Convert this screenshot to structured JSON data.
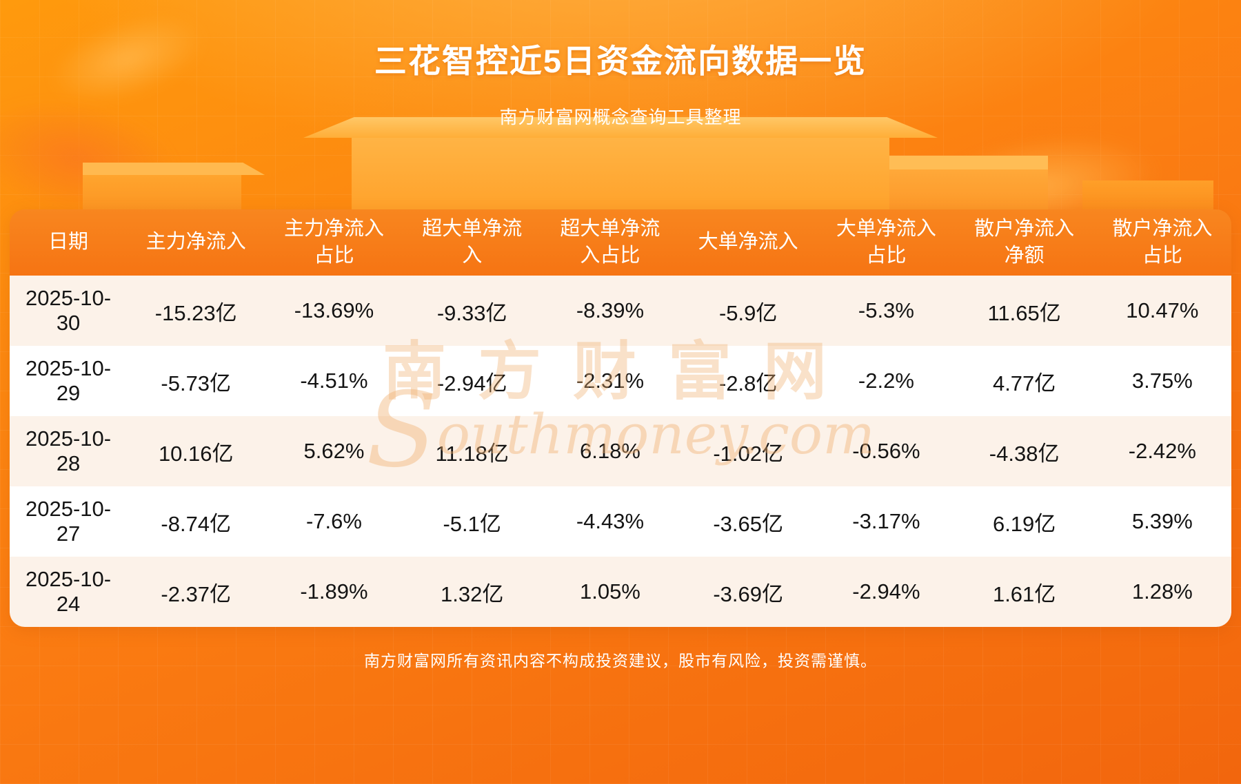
{
  "page": {
    "title": "三花智控近5日资金流向数据一览",
    "subtitle": "南方财富网概念查询工具整理",
    "disclaimer": "南方财富网所有资讯内容不构成投资建议，股市有风险，投资需谨慎。",
    "watermark_cn": "南方财富网",
    "watermark_en": "outhmoney.com",
    "watermark_en_initial": "S"
  },
  "colors": {
    "background_orange": "#fb7d12",
    "header_orange": "#f67413",
    "row_cream": "#fcf2e9",
    "row_white": "#ffffff",
    "title_text": "#ffffff",
    "cell_text": "#141414"
  },
  "chart_data": {
    "type": "table",
    "title": "三花智控近5日资金流向数据一览",
    "columns": [
      "日期",
      "主力净流入",
      "主力净流入占比",
      "超大单净流入",
      "超大单净流入占比",
      "大单净流入",
      "大单净流入占比",
      "散户净流入净额",
      "散户净流入占比"
    ],
    "rows": [
      [
        "2025-10-30",
        "-15.23亿",
        "-13.69%",
        "-9.33亿",
        "-8.39%",
        "-5.9亿",
        "-5.3%",
        "11.65亿",
        "10.47%"
      ],
      [
        "2025-10-29",
        "-5.73亿",
        "-4.51%",
        "-2.94亿",
        "-2.31%",
        "-2.8亿",
        "-2.2%",
        "4.77亿",
        "3.75%"
      ],
      [
        "2025-10-28",
        "10.16亿",
        "5.62%",
        "11.18亿",
        "6.18%",
        "-1.02亿",
        "-0.56%",
        "-4.38亿",
        "-2.42%"
      ],
      [
        "2025-10-27",
        "-8.74亿",
        "-7.6%",
        "-5.1亿",
        "-4.43%",
        "-3.65亿",
        "-3.17%",
        "6.19亿",
        "5.39%"
      ],
      [
        "2025-10-24",
        "-2.37亿",
        "-1.89%",
        "1.32亿",
        "1.05%",
        "-3.69亿",
        "-2.94%",
        "1.61亿",
        "1.28%"
      ]
    ]
  }
}
